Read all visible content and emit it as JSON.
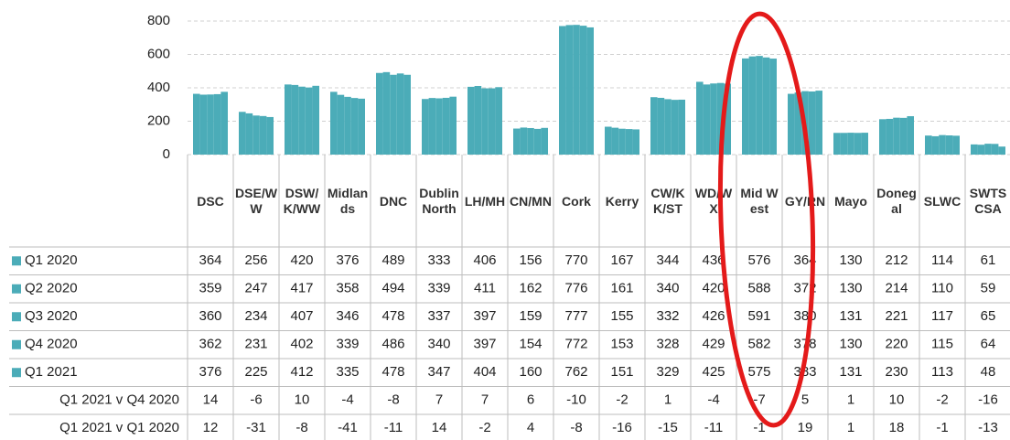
{
  "chart_data": {
    "type": "bar",
    "categories": [
      "DSC",
      "DSE/WW",
      "DSW/K/WW",
      "Midlands",
      "DNC",
      "Dublin North",
      "LH/MH",
      "CN/MN",
      "Cork",
      "Kerry",
      "CW/KK/ST",
      "WD/WX",
      "Mid West",
      "GY/RN",
      "Mayo",
      "Donegal",
      "SLWC",
      "SWTS CSA"
    ],
    "series": [
      {
        "name": "Q1 2020",
        "color": "#4bacb8",
        "values": [
          364,
          256,
          420,
          376,
          489,
          333,
          406,
          156,
          770,
          167,
          344,
          436,
          576,
          364,
          130,
          212,
          114,
          61
        ]
      },
      {
        "name": "Q2 2020",
        "color": "#4bacb8",
        "values": [
          359,
          247,
          417,
          358,
          494,
          339,
          411,
          162,
          776,
          161,
          340,
          420,
          588,
          372,
          130,
          214,
          110,
          59
        ]
      },
      {
        "name": "Q3 2020",
        "color": "#4bacb8",
        "values": [
          360,
          234,
          407,
          346,
          478,
          337,
          397,
          159,
          777,
          155,
          332,
          426,
          591,
          380,
          131,
          221,
          117,
          65
        ]
      },
      {
        "name": "Q4 2020",
        "color": "#4bacb8",
        "values": [
          362,
          231,
          402,
          339,
          486,
          340,
          397,
          154,
          772,
          153,
          328,
          429,
          582,
          378,
          130,
          220,
          115,
          64
        ]
      },
      {
        "name": "Q1 2021",
        "color": "#4bacb8",
        "values": [
          376,
          225,
          412,
          335,
          478,
          347,
          404,
          160,
          762,
          151,
          329,
          425,
          575,
          383,
          131,
          230,
          113,
          48
        ]
      }
    ],
    "table_rows": [
      {
        "name": "Q1 2021 v Q4 2020",
        "values": [
          14,
          -6,
          10,
          -4,
          -8,
          7,
          7,
          6,
          -10,
          -2,
          1,
          -4,
          -7,
          5,
          1,
          10,
          -2,
          -16
        ]
      },
      {
        "name": "Q1 2021 v Q1 2020",
        "values": [
          12,
          -31,
          -8,
          -41,
          -11,
          14,
          -2,
          4,
          -8,
          -16,
          -15,
          -11,
          -1,
          19,
          1,
          18,
          -1,
          -13
        ]
      }
    ],
    "ylim": [
      0,
      800
    ],
    "yticks": [
      0,
      200,
      400,
      600,
      800
    ],
    "grid": true
  }
}
